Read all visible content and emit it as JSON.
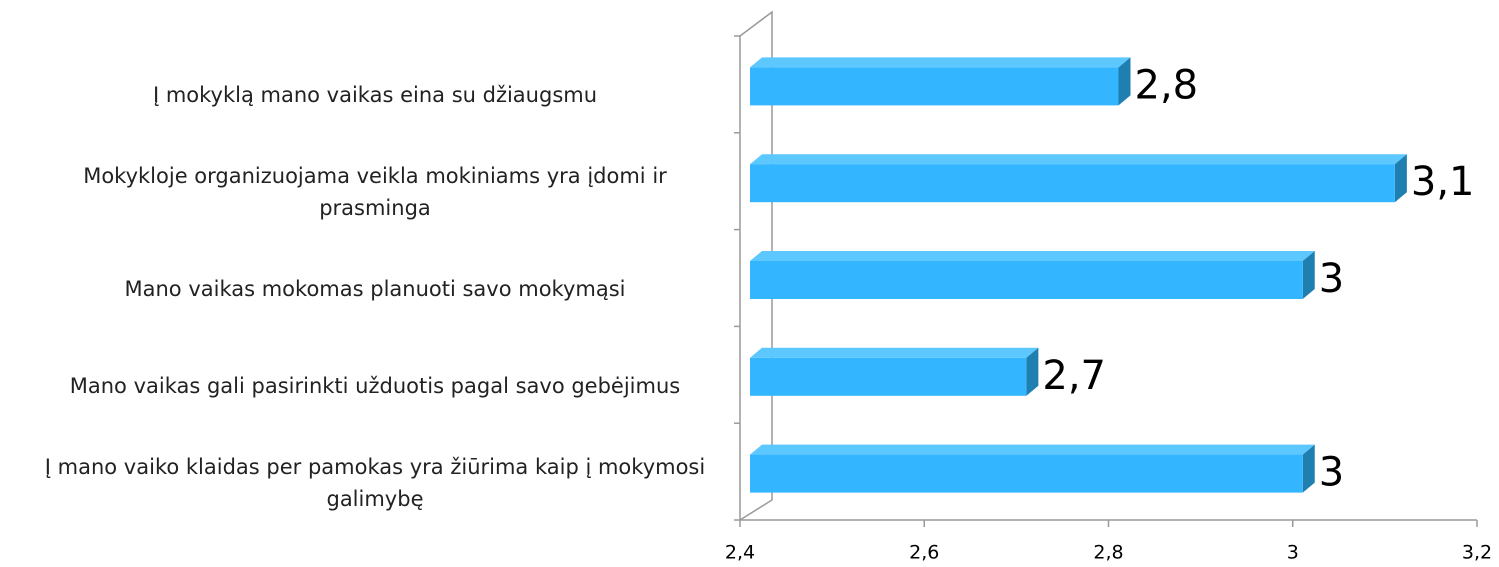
{
  "chart_data": {
    "type": "bar3d_horizontal",
    "categories": [
      "Į mokyklą mano vaikas eina su džiaugsmu",
      "Mokykloje organizuojama veikla mokiniams yra įdomi ir prasminga",
      "Mano vaikas mokomas planuoti savo mokymąsi",
      "Mano vaikas gali pasirinkti užduotis pagal savo gebėjimus",
      "Į mano vaiko klaidas per pamokas yra žiūrima kaip į mokymosi galimybę"
    ],
    "values": [
      2.8,
      3.1,
      3,
      2.7,
      3
    ],
    "value_labels": [
      "2,8",
      "3,1",
      "3",
      "2,7",
      "3"
    ],
    "color": "#33b5ff",
    "xlim": [
      2.4,
      3.2
    ],
    "xticks": [
      {
        "value": 2.4,
        "label": "2,4"
      },
      {
        "value": 2.6,
        "label": "2,6"
      },
      {
        "value": 2.8,
        "label": "2,8"
      },
      3,
      {
        "value": 3.2,
        "label": "3,2"
      }
    ]
  }
}
